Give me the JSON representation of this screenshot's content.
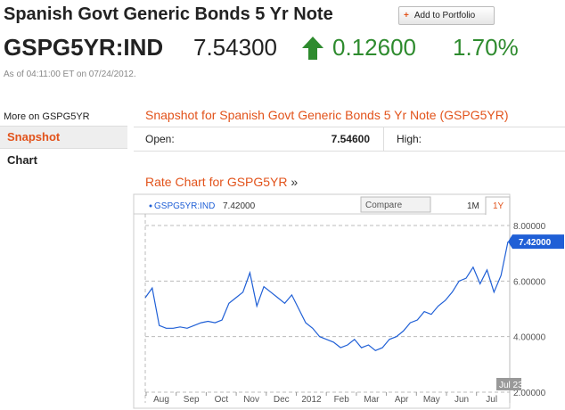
{
  "header": {
    "title": "Spanish Govt Generic Bonds 5 Yr Note",
    "button": "Add to Portfolio",
    "ticker": "GSPG5YR:IND",
    "price": "7.54300",
    "change": "0.12600",
    "change_pct": "1.70%",
    "as_of": "As of 04:11:00 ET on 07/24/2012."
  },
  "sidebar": {
    "heading": "More on GSPG5YR",
    "items": [
      "Snapshot",
      "Chart"
    ]
  },
  "snapshot": {
    "title": "Snapshot for Spanish Govt Generic Bonds 5 Yr Note (GSPG5YR)",
    "rows": [
      [
        "Open:",
        "7.54600",
        "High:"
      ]
    ]
  },
  "rate_chart": {
    "type": "line",
    "title": "Rate Chart for GSPG5YR",
    "arrow": "»",
    "compare": "Compare",
    "ranges": [
      "1M",
      "1Y"
    ],
    "categories": [
      "Aug",
      "Sep",
      "Oct",
      "Nov",
      "Dec",
      "2012",
      "Feb",
      "Mar",
      "Apr",
      "May",
      "Jun",
      "Jul"
    ],
    "series": [
      {
        "name": "GSPG5YR:IND",
        "color": "#1f5fd6",
        "values": [
          5.4,
          5.75,
          4.4,
          4.3,
          4.3,
          4.35,
          4.3,
          4.4,
          4.5,
          4.55,
          4.5,
          4.6,
          5.2,
          5.4,
          5.6,
          6.3,
          5.1,
          5.8,
          5.6,
          5.4,
          5.2,
          5.5,
          5.0,
          4.5,
          4.3,
          4.0,
          3.9,
          3.8,
          3.6,
          3.7,
          3.9,
          3.6,
          3.7,
          3.5,
          3.6,
          3.9,
          4.0,
          4.2,
          4.5,
          4.6,
          4.9,
          4.8,
          5.1,
          5.3,
          5.6,
          6.0,
          6.1,
          6.5,
          5.9,
          6.4,
          5.6,
          6.2,
          7.42
        ],
        "last_label": "7.42000"
      }
    ],
    "last_date": "Jul 23",
    "ylim": [
      2,
      8
    ],
    "yticks": [
      {
        "value": 2,
        "label": "2.00000"
      },
      {
        "value": 4,
        "label": "4.00000"
      },
      {
        "value": 6,
        "label": "6.00000"
      },
      {
        "value": 8,
        "label": "8.00000"
      }
    ],
    "grid": true
  }
}
